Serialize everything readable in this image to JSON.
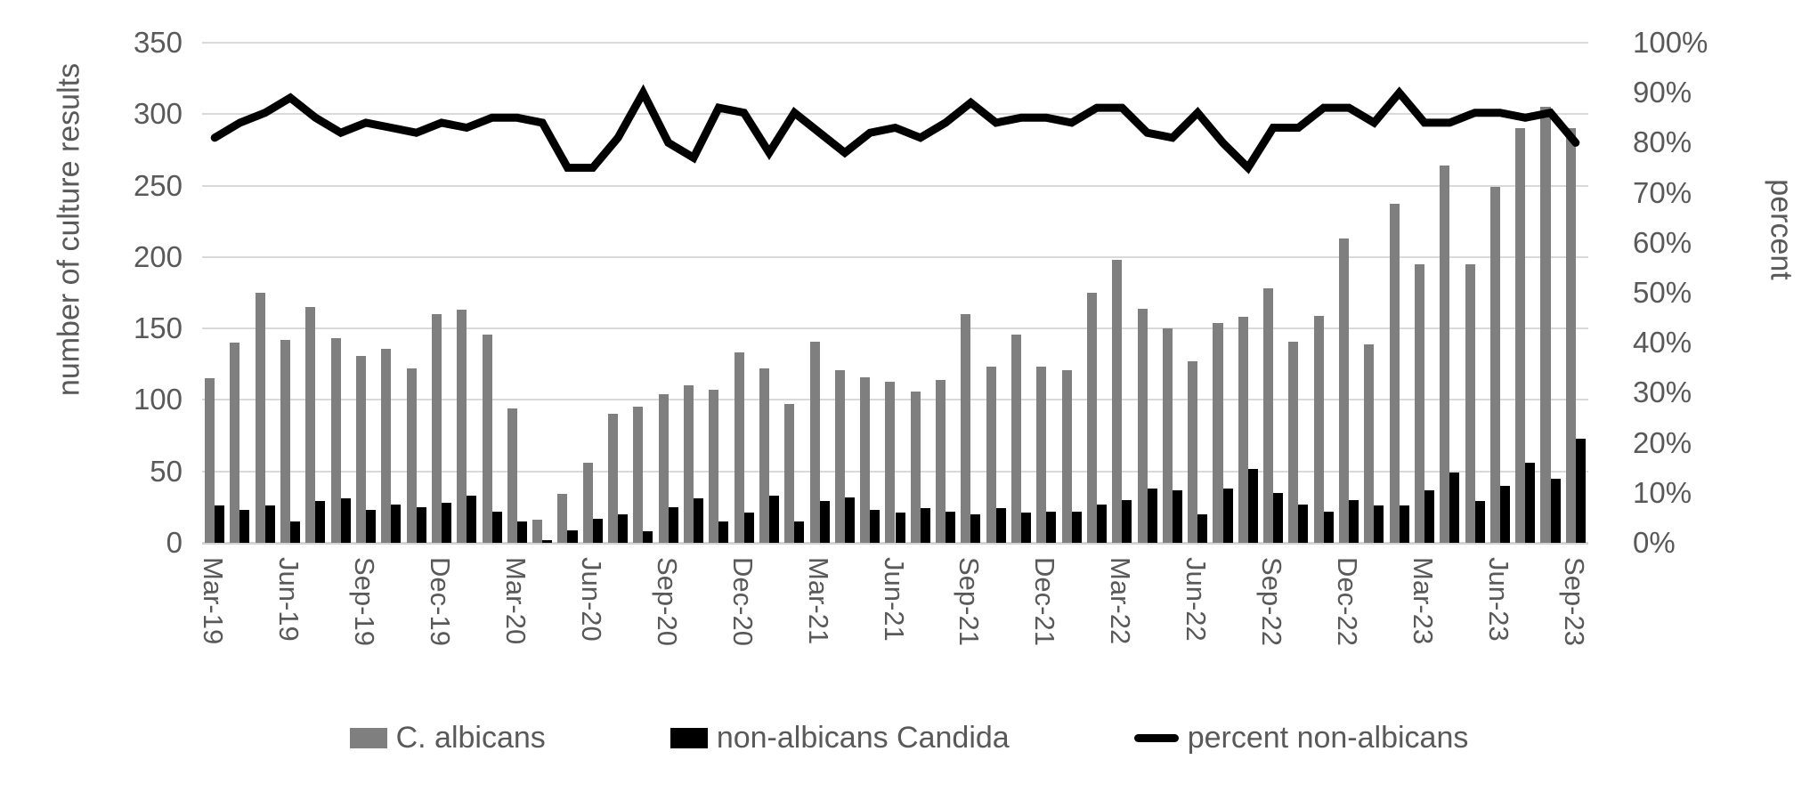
{
  "chart": {
    "left_axis_title": "number of culture results",
    "right_axis_title": "percent",
    "left_tick_labels": [
      "0",
      "50",
      "100",
      "150",
      "200",
      "250",
      "300",
      "350"
    ],
    "right_tick_labels": [
      "0%",
      "10%",
      "20%",
      "30%",
      "40%",
      "50%",
      "60%",
      "70%",
      "80%",
      "90%",
      "100%"
    ],
    "colors": {
      "c_albicans_bar": "#7f7f7f",
      "non_albicans_bar": "#000000",
      "percent_line": "#000000",
      "gridline": "#d9d9d9",
      "axis_text": "#595959"
    },
    "legend": {
      "c_albicans_label": "C. albicans",
      "non_albicans_label": "non-albicans Candida",
      "percent_label": "percent non-albicans"
    }
  },
  "chart_data": {
    "type": "bar",
    "subtype": "combo-bar-line",
    "title": "",
    "xlabel": "",
    "ylabel_left": "number of culture results",
    "ylabel_right": "percent",
    "left_ylim": [
      0,
      350
    ],
    "right_ylim": [
      0,
      100
    ],
    "grid": "horizontal, every 50 units (left axis)",
    "legend_position": "bottom-center",
    "categories": [
      "Mar-19",
      "Apr-19",
      "May-19",
      "Jun-19",
      "Jul-19",
      "Aug-19",
      "Sep-19",
      "Oct-19",
      "Nov-19",
      "Dec-19",
      "Jan-20",
      "Feb-20",
      "Mar-20",
      "Apr-20",
      "May-20",
      "Jun-20",
      "Jul-20",
      "Aug-20",
      "Sep-20",
      "Oct-20",
      "Nov-20",
      "Dec-20",
      "Jan-21",
      "Feb-21",
      "Mar-21",
      "Apr-21",
      "May-21",
      "Jun-21",
      "Jul-21",
      "Aug-21",
      "Sep-21",
      "Oct-21",
      "Nov-21",
      "Dec-21",
      "Jan-22",
      "Feb-22",
      "Mar-22",
      "Apr-22",
      "May-22",
      "Jun-22",
      "Jul-22",
      "Aug-22",
      "Sep-22",
      "Oct-22",
      "Nov-22",
      "Dec-22",
      "Jan-23",
      "Feb-23",
      "Mar-23",
      "Apr-23",
      "May-23",
      "Jun-23",
      "Jul-23",
      "Aug-23",
      "Sep-23"
    ],
    "x_tick_labels_shown": [
      "Mar-19",
      "Jun-19",
      "Sep-19",
      "Dec-19",
      "Mar-20",
      "Jun-20",
      "Sep-20",
      "Dec-20",
      "Mar-21",
      "Jun-21",
      "Sep-21",
      "Dec-21",
      "Mar-22",
      "Jun-22",
      "Sep-22",
      "Dec-22",
      "Mar-23",
      "Jun-23",
      "Sep-23"
    ],
    "x_tick_every_n_months": 3,
    "series": [
      {
        "name": "C. albicans",
        "type": "bar",
        "axis": "left",
        "color": "#7f7f7f",
        "values": [
          115,
          140,
          175,
          142,
          165,
          143,
          131,
          136,
          122,
          160,
          163,
          146,
          94,
          16,
          34,
          56,
          90,
          95,
          104,
          110,
          107,
          133,
          122,
          97,
          141,
          121,
          116,
          113,
          106,
          114,
          160,
          123,
          146,
          123,
          121,
          175,
          198,
          164,
          150,
          127,
          154,
          158,
          178,
          141,
          159,
          213,
          139,
          237,
          195,
          264,
          195,
          249,
          290,
          305,
          290
        ]
      },
      {
        "name": "non-albicans Candida",
        "type": "bar",
        "axis": "left",
        "color": "#000000",
        "values": [
          26,
          23,
          26,
          15,
          29,
          31,
          23,
          27,
          25,
          28,
          33,
          22,
          15,
          2,
          9,
          17,
          20,
          8,
          25,
          31,
          15,
          21,
          33,
          15,
          29,
          32,
          23,
          21,
          24,
          22,
          20,
          24,
          21,
          22,
          22,
          27,
          30,
          38,
          37,
          20,
          38,
          52,
          35,
          27,
          22,
          30,
          26,
          26,
          37,
          49,
          29,
          40,
          56,
          45,
          73
        ]
      },
      {
        "name": "percent non-albicans",
        "type": "line",
        "axis": "right",
        "color": "#000000",
        "stroke_width": 9,
        "values_percent": [
          81,
          84,
          86,
          89,
          85,
          82,
          84,
          83,
          82,
          84,
          83,
          85,
          85,
          84,
          75,
          75,
          81,
          90,
          80,
          77,
          87,
          86,
          78,
          86,
          82,
          78,
          82,
          83,
          81,
          84,
          88,
          84,
          85,
          85,
          84,
          87,
          87,
          82,
          81,
          86,
          80,
          75,
          83,
          83,
          87,
          87,
          84,
          90,
          84,
          84,
          86,
          86,
          85,
          86,
          80
        ]
      }
    ]
  }
}
